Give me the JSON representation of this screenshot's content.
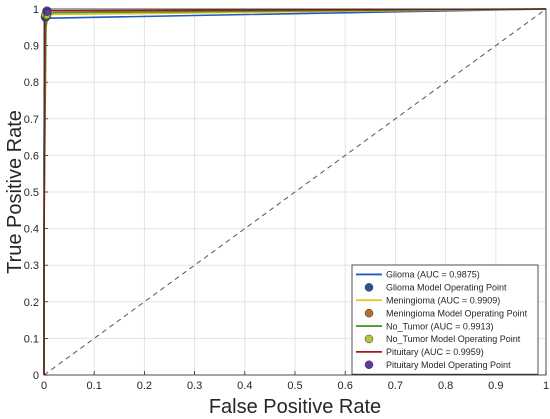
{
  "chart_data": {
    "type": "line",
    "title": "",
    "xlabel": "False Positive Rate",
    "ylabel": "True Positive Rate",
    "xlim": [
      0,
      1
    ],
    "ylim": [
      0,
      1
    ],
    "xticks": [
      "0",
      "0.1",
      "0.2",
      "0.3",
      "0.4",
      "0.5",
      "0.6",
      "0.7",
      "0.8",
      "0.9",
      "1"
    ],
    "yticks": [
      "0",
      "0.1",
      "0.2",
      "0.3",
      "0.4",
      "0.5",
      "0.6",
      "0.7",
      "0.8",
      "0.9",
      "1"
    ],
    "grid": true,
    "legend_position": "bottom-right",
    "chance_line": {
      "x": [
        0,
        1
      ],
      "y": [
        0,
        1
      ],
      "color": "#555555",
      "style": "dashed"
    },
    "series": [
      {
        "name": "Glioma (AUC = 0.9875)",
        "color": "#1f5bc4",
        "x": [
          0,
          0,
          0.002,
          0.005,
          0.01,
          1
        ],
        "y": [
          0,
          0.6,
          0.96,
          0.974,
          0.975,
          1
        ]
      },
      {
        "name": "Meningioma (AUC = 0.9909)",
        "color": "#e6c21a",
        "x": [
          0,
          0,
          0.003,
          0.006,
          0.012,
          1
        ],
        "y": [
          0,
          0.5,
          0.95,
          0.982,
          0.985,
          1
        ]
      },
      {
        "name": "No_Tumor (AUC = 0.9913)",
        "color": "#4a9a28",
        "x": [
          0,
          0,
          0.004,
          0.008,
          0.02,
          1
        ],
        "y": [
          0,
          0.4,
          0.95,
          0.985,
          0.99,
          1
        ]
      },
      {
        "name": "Pituitary (AUC = 0.9959)",
        "color": "#a01c1c",
        "x": [
          0,
          0,
          0.002,
          0.005,
          0.01,
          1
        ],
        "y": [
          0,
          0.3,
          0.97,
          0.992,
          0.995,
          1
        ]
      }
    ],
    "operating_points": [
      {
        "name": "Glioma Model Operating Point",
        "color": "#2e4f9a",
        "x": 0.003,
        "y": 0.978
      },
      {
        "name": "Meningioma Model Operating Point",
        "color": "#b86d2a",
        "x": 0.005,
        "y": 0.983
      },
      {
        "name": "No_Tumor Model Operating Point",
        "color": "#b3c63a",
        "x": 0.004,
        "y": 0.985
      },
      {
        "name": "Pituitary Model Operating Point",
        "color": "#5b3c9e",
        "x": 0.006,
        "y": 0.994
      }
    ]
  }
}
